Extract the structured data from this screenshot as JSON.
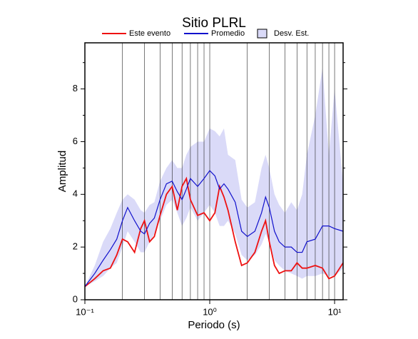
{
  "chart_data": {
    "type": "line",
    "title": "Sitio PLRL",
    "xlabel": "Periodo (s)",
    "ylabel": "Amplitud",
    "xscale": "log",
    "xlim": [
      0.1,
      11.7
    ],
    "ylim": [
      0,
      9.75
    ],
    "xticks": [
      {
        "value": 0.1,
        "label": "10⁻¹"
      },
      {
        "value": 1,
        "label": "10⁰"
      },
      {
        "value": 10,
        "label": "10¹"
      }
    ],
    "xgrid": [
      0.2,
      0.3,
      0.4,
      0.5,
      0.6,
      0.7,
      0.8,
      0.9,
      1,
      2,
      3,
      4,
      5,
      6,
      7,
      8,
      9,
      10
    ],
    "yticks": [
      0,
      2,
      4,
      6,
      8
    ],
    "yminor": [
      1,
      3,
      5,
      7,
      9
    ],
    "x": [
      0.1,
      0.12,
      0.14,
      0.16,
      0.18,
      0.2,
      0.22,
      0.25,
      0.28,
      0.3,
      0.33,
      0.36,
      0.4,
      0.45,
      0.5,
      0.55,
      0.6,
      0.65,
      0.7,
      0.8,
      0.9,
      1.0,
      1.1,
      1.2,
      1.3,
      1.4,
      1.6,
      1.8,
      2.0,
      2.3,
      2.6,
      2.8,
      3.0,
      3.3,
      3.6,
      4.0,
      4.5,
      5,
      5.5,
      6,
      7,
      8,
      9,
      10,
      11.7
    ],
    "series": [
      {
        "name": "Este evento",
        "color": "#ee1111",
        "values": [
          0.5,
          0.8,
          1.1,
          1.2,
          1.7,
          2.3,
          2.2,
          1.8,
          2.7,
          3.0,
          2.2,
          2.4,
          3.2,
          4.0,
          4.3,
          3.4,
          4.3,
          4.6,
          3.8,
          3.2,
          3.3,
          3.0,
          3.3,
          4.3,
          3.9,
          3.4,
          2.2,
          1.3,
          1.4,
          1.8,
          2.6,
          3.0,
          2.2,
          1.3,
          1.0,
          1.1,
          1.1,
          1.4,
          1.2,
          1.2,
          1.3,
          1.2,
          0.8,
          0.9,
          1.4
        ]
      },
      {
        "name": "Promedio",
        "color": "#1111cc",
        "values": [
          0.5,
          1.0,
          1.5,
          1.9,
          2.3,
          3.0,
          3.5,
          3.0,
          2.6,
          2.5,
          2.9,
          3.1,
          3.8,
          4.4,
          4.5,
          4.1,
          3.8,
          4.2,
          4.6,
          4.3,
          4.6,
          4.9,
          4.7,
          4.2,
          4.4,
          4.2,
          3.7,
          2.6,
          2.4,
          2.6,
          3.3,
          3.9,
          3.5,
          2.6,
          2.2,
          2.0,
          2.0,
          1.8,
          1.8,
          2.2,
          2.3,
          2.8,
          2.8,
          2.7,
          2.6
        ]
      },
      {
        "name": "Desv. Est.",
        "color": "#dadaf8",
        "upper": [
          0.5,
          1.3,
          2.2,
          2.7,
          3.3,
          3.8,
          4.0,
          3.8,
          3.4,
          3.3,
          3.6,
          3.7,
          4.5,
          5.0,
          5.3,
          5.0,
          5.0,
          5.5,
          5.8,
          6.0,
          6.0,
          6.5,
          6.4,
          6.2,
          6.5,
          5.5,
          5.3,
          3.8,
          3.5,
          3.7,
          5.0,
          5.5,
          5.0,
          4.0,
          3.6,
          3.3,
          3.7,
          3.4,
          4.0,
          5.5,
          7.0,
          8.8,
          5.5,
          8.0,
          4.4
        ],
        "lower": [
          0.5,
          0.7,
          0.9,
          1.2,
          1.4,
          2.0,
          2.6,
          2.2,
          1.8,
          1.8,
          2.2,
          2.5,
          3.0,
          3.6,
          3.8,
          3.3,
          2.8,
          3.1,
          3.5,
          3.0,
          3.3,
          3.6,
          3.3,
          2.8,
          2.8,
          3.0,
          2.5,
          1.7,
          1.5,
          1.7,
          2.1,
          2.5,
          2.2,
          1.5,
          1.3,
          1.1,
          1.0,
          0.9,
          0.8,
          0.9,
          0.9,
          1.0,
          0.9,
          0.9,
          1.2
        ]
      }
    ]
  }
}
